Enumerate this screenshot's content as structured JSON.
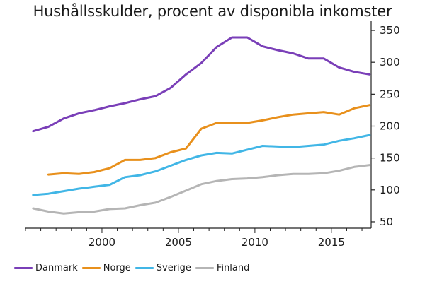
{
  "chart_data": {
    "type": "line",
    "title": "Hushållsskulder, procent av disponibla inkomster",
    "xlabel": "",
    "ylabel": "",
    "xlim": [
      1995,
      2017.6
    ],
    "ylim": [
      40,
      360
    ],
    "yticks": [
      50,
      100,
      150,
      200,
      250,
      300,
      350
    ],
    "xticks": [
      2000,
      2005,
      2010,
      2015
    ],
    "y_axis_side": "right",
    "legend_position": "bottom-left",
    "series": [
      {
        "name": "Danmark",
        "color": "#7a3fb8",
        "x": [
          1995.5,
          1996.5,
          1997.5,
          1998.5,
          1999.5,
          2000.5,
          2001.5,
          2002.5,
          2003.5,
          2004.5,
          2005.5,
          2006.5,
          2007.5,
          2008.5,
          2009.5,
          2010.5,
          2011.5,
          2012.5,
          2013.5,
          2014.5,
          2015.5,
          2016.5,
          2017.5
        ],
        "values": [
          192,
          199,
          212,
          220,
          225,
          231,
          236,
          242,
          247,
          260,
          281,
          299,
          324,
          339,
          339,
          325,
          319,
          314,
          306,
          306,
          292,
          285,
          281
        ]
      },
      {
        "name": "Norge",
        "color": "#e8901c",
        "x": [
          1996.5,
          1997.5,
          1998.5,
          1999.5,
          2000.5,
          2001.5,
          2002.5,
          2003.5,
          2004.5,
          2005.5,
          2006.5,
          2007.5,
          2008.5,
          2009.5,
          2010.5,
          2011.5,
          2012.5,
          2013.5,
          2014.5,
          2015.5,
          2016.5,
          2017.5
        ],
        "values": [
          124,
          126,
          125,
          128,
          134,
          147,
          147,
          150,
          159,
          165,
          196,
          205,
          205,
          205,
          209,
          214,
          218,
          220,
          222,
          218,
          228,
          233
        ]
      },
      {
        "name": "Sverige",
        "color": "#41b6e6",
        "x": [
          1995.5,
          1996.5,
          1997.5,
          1998.5,
          1999.5,
          2000.5,
          2001.5,
          2002.5,
          2003.5,
          2004.5,
          2005.5,
          2006.5,
          2007.5,
          2008.5,
          2009.5,
          2010.5,
          2011.5,
          2012.5,
          2013.5,
          2014.5,
          2015.5,
          2016.5,
          2017.5
        ],
        "values": [
          92,
          94,
          98,
          102,
          105,
          108,
          120,
          123,
          129,
          138,
          147,
          154,
          158,
          157,
          163,
          169,
          168,
          167,
          169,
          171,
          177,
          181,
          186
        ]
      },
      {
        "name": "Finland",
        "color": "#b5b5b5",
        "x": [
          1995.5,
          1996.5,
          1997.5,
          1998.5,
          1999.5,
          2000.5,
          2001.5,
          2002.5,
          2003.5,
          2004.5,
          2005.5,
          2006.5,
          2007.5,
          2008.5,
          2009.5,
          2010.5,
          2011.5,
          2012.5,
          2013.5,
          2014.5,
          2015.5,
          2016.5,
          2017.5
        ],
        "values": [
          71,
          66,
          63,
          65,
          66,
          70,
          71,
          76,
          80,
          89,
          99,
          109,
          114,
          117,
          118,
          120,
          123,
          125,
          125,
          126,
          130,
          136,
          139
        ]
      }
    ]
  }
}
